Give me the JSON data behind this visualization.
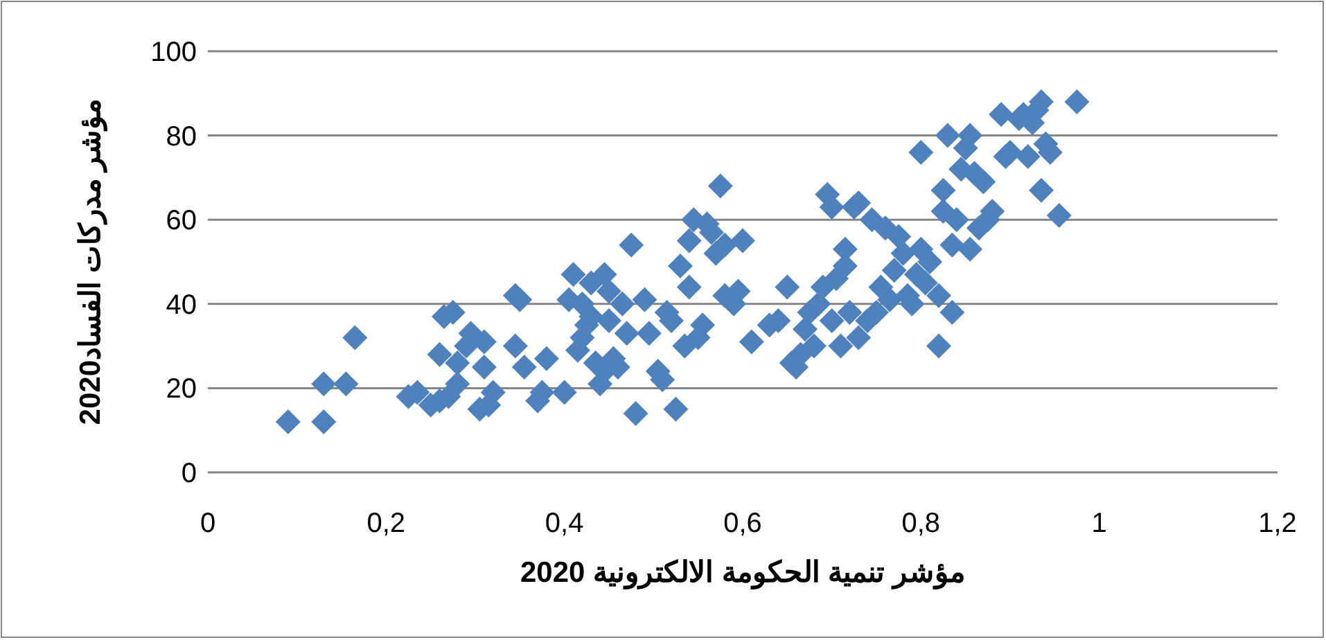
{
  "chart_data": {
    "type": "scatter",
    "xlabel": "مؤشر تنمية الحكومة الالكترونية 2020",
    "ylabel": "مؤشر مدركات الفساد2020",
    "xlim": [
      0,
      1.2
    ],
    "xticks": [
      0,
      {
        "value": 0.2,
        "label": "0,2"
      },
      {
        "value": 0.4,
        "label": "0,4"
      },
      {
        "value": 0.6,
        "label": "0,6"
      },
      {
        "value": 0.8,
        "label": "0,8"
      },
      1,
      {
        "value": 1.2,
        "label": "1,2"
      }
    ],
    "ylim": [
      0,
      100
    ],
    "yticks": [
      0,
      20,
      40,
      60,
      80,
      100
    ],
    "grid": "y",
    "marker": "diamond",
    "series": [
      {
        "color": "#4f81bd",
        "x": [
          0.09,
          0.13,
          0.13,
          0.155,
          0.165,
          0.225,
          0.235,
          0.25,
          0.26,
          0.26,
          0.265,
          0.275,
          0.27,
          0.28,
          0.28,
          0.29,
          0.295,
          0.305,
          0.31,
          0.31,
          0.315,
          0.32,
          0.345,
          0.345,
          0.35,
          0.355,
          0.37,
          0.375,
          0.38,
          0.4,
          0.405,
          0.41,
          0.415,
          0.42,
          0.42,
          0.425,
          0.43,
          0.43,
          0.435,
          0.44,
          0.445,
          0.445,
          0.45,
          0.45,
          0.455,
          0.46,
          0.465,
          0.47,
          0.475,
          0.48,
          0.49,
          0.495,
          0.505,
          0.51,
          0.515,
          0.52,
          0.525,
          0.53,
          0.535,
          0.54,
          0.54,
          0.545,
          0.55,
          0.555,
          0.56,
          0.565,
          0.57,
          0.575,
          0.58,
          0.58,
          0.59,
          0.595,
          0.6,
          0.61,
          0.63,
          0.64,
          0.65,
          0.655,
          0.66,
          0.665,
          0.67,
          0.675,
          0.68,
          0.685,
          0.69,
          0.695,
          0.7,
          0.7,
          0.705,
          0.71,
          0.715,
          0.715,
          0.72,
          0.725,
          0.73,
          0.73,
          0.74,
          0.745,
          0.75,
          0.755,
          0.76,
          0.765,
          0.77,
          0.775,
          0.78,
          0.785,
          0.79,
          0.795,
          0.8,
          0.8,
          0.805,
          0.81,
          0.82,
          0.82,
          0.825,
          0.825,
          0.83,
          0.835,
          0.835,
          0.84,
          0.845,
          0.85,
          0.855,
          0.855,
          0.86,
          0.865,
          0.87,
          0.875,
          0.88,
          0.89,
          0.895,
          0.9,
          0.91,
          0.915,
          0.92,
          0.925,
          0.93,
          0.935,
          0.935,
          0.94,
          0.945,
          0.955,
          0.975
        ],
        "values": [
          12,
          12,
          21,
          21,
          32,
          18,
          19,
          16,
          17,
          28,
          37,
          38,
          18,
          26,
          21,
          30,
          33,
          15,
          25,
          31,
          16,
          19,
          42,
          30,
          41,
          25,
          17,
          19,
          27,
          19,
          41,
          47,
          29,
          32,
          40,
          35,
          45,
          37,
          26,
          21,
          47,
          24,
          43,
          36,
          27,
          25,
          40,
          33,
          54,
          14,
          41,
          33,
          24,
          22,
          38,
          36,
          15,
          49,
          30,
          55,
          44,
          60,
          32,
          35,
          59,
          57,
          52,
          68,
          54,
          42,
          40,
          43,
          55,
          31,
          35,
          36,
          44,
          26,
          25,
          28,
          34,
          38,
          30,
          40,
          44,
          66,
          63,
          36,
          46,
          30,
          49,
          53,
          38,
          63,
          32,
          64,
          36,
          60,
          38,
          44,
          58,
          41,
          48,
          56,
          52,
          42,
          40,
          47,
          53,
          76,
          45,
          50,
          42,
          30,
          62,
          67,
          80,
          38,
          54,
          60,
          72,
          77,
          80,
          53,
          71,
          58,
          69,
          60,
          62,
          85,
          75,
          76,
          84,
          85,
          75,
          83,
          86,
          88,
          67,
          78,
          76,
          61,
          88
        ]
      }
    ]
  }
}
